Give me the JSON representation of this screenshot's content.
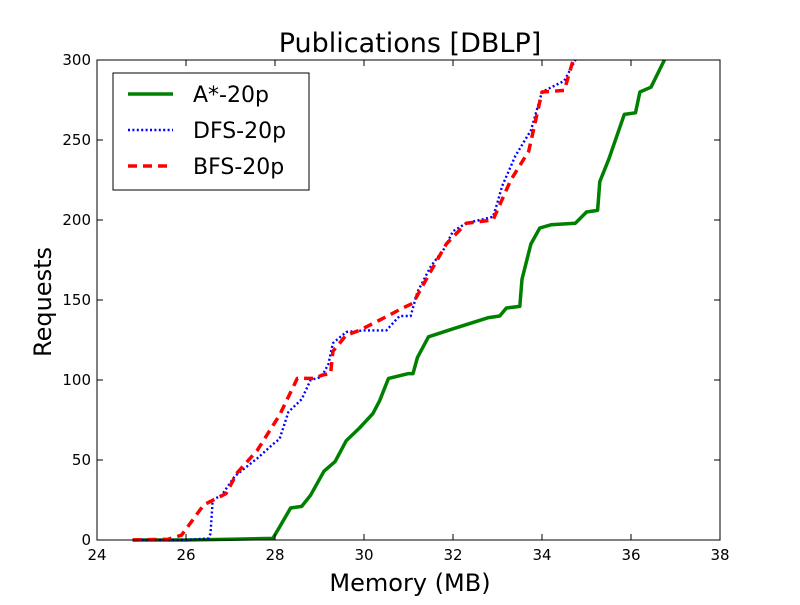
{
  "chart_data": {
    "type": "line",
    "title": "Publications [DBLP]",
    "xlabel": "Memory (MB)",
    "ylabel": "Requests",
    "xlim": [
      24,
      38
    ],
    "ylim": [
      0,
      300
    ],
    "xticks": [
      24,
      26,
      28,
      30,
      32,
      34,
      36,
      38
    ],
    "yticks": [
      0,
      50,
      100,
      150,
      200,
      250,
      300
    ],
    "grid": false,
    "legend_position": "top-left",
    "series": [
      {
        "name": "A*-20p",
        "color": "#008000",
        "style": "solid",
        "points": [
          [
            24.8,
            0
          ],
          [
            26.0,
            0
          ],
          [
            27.0,
            0.5
          ],
          [
            27.95,
            1
          ],
          [
            28.1,
            8
          ],
          [
            28.35,
            20
          ],
          [
            28.6,
            21
          ],
          [
            28.8,
            28
          ],
          [
            29.0,
            38
          ],
          [
            29.1,
            43
          ],
          [
            29.35,
            49
          ],
          [
            29.6,
            62
          ],
          [
            29.9,
            70
          ],
          [
            30.2,
            79
          ],
          [
            30.35,
            87
          ],
          [
            30.55,
            101
          ],
          [
            31.0,
            104
          ],
          [
            31.1,
            104
          ],
          [
            31.2,
            114
          ],
          [
            31.45,
            127
          ],
          [
            32.0,
            132
          ],
          [
            32.8,
            139
          ],
          [
            33.05,
            140
          ],
          [
            33.2,
            145
          ],
          [
            33.5,
            146
          ],
          [
            33.55,
            163
          ],
          [
            33.75,
            185
          ],
          [
            33.95,
            195
          ],
          [
            34.2,
            197
          ],
          [
            34.75,
            198
          ],
          [
            35.0,
            205
          ],
          [
            35.25,
            206
          ],
          [
            35.3,
            224
          ],
          [
            35.5,
            238
          ],
          [
            35.85,
            266
          ],
          [
            36.1,
            267
          ],
          [
            36.2,
            280
          ],
          [
            36.45,
            283
          ],
          [
            36.75,
            300
          ]
        ]
      },
      {
        "name": "DFS-20p",
        "color": "#0000ff",
        "style": "dotted",
        "points": [
          [
            24.8,
            0
          ],
          [
            26.0,
            0
          ],
          [
            26.5,
            1
          ],
          [
            26.55,
            4
          ],
          [
            26.6,
            25
          ],
          [
            26.8,
            28
          ],
          [
            27.1,
            40
          ],
          [
            27.6,
            51
          ],
          [
            28.0,
            61
          ],
          [
            28.1,
            63
          ],
          [
            28.3,
            80
          ],
          [
            28.6,
            88
          ],
          [
            28.8,
            100
          ],
          [
            29.05,
            102
          ],
          [
            29.2,
            110
          ],
          [
            29.3,
            123
          ],
          [
            29.6,
            130
          ],
          [
            30.0,
            131
          ],
          [
            30.5,
            131
          ],
          [
            30.8,
            140
          ],
          [
            31.05,
            140
          ],
          [
            31.2,
            155
          ],
          [
            31.5,
            171
          ],
          [
            31.8,
            182
          ],
          [
            32.0,
            193
          ],
          [
            32.3,
            198
          ],
          [
            32.9,
            202
          ],
          [
            33.0,
            211
          ],
          [
            33.1,
            221
          ],
          [
            33.4,
            240
          ],
          [
            33.75,
            256
          ],
          [
            34.0,
            280
          ],
          [
            34.5,
            287
          ],
          [
            34.75,
            300
          ]
        ]
      },
      {
        "name": "BFS-20p",
        "color": "#ff0000",
        "style": "dashed",
        "points": [
          [
            24.8,
            0
          ],
          [
            25.6,
            0.5
          ],
          [
            25.9,
            3
          ],
          [
            26.4,
            22
          ],
          [
            26.9,
            29
          ],
          [
            27.15,
            42
          ],
          [
            27.6,
            56
          ],
          [
            28.1,
            78
          ],
          [
            28.5,
            101
          ],
          [
            28.9,
            101
          ],
          [
            29.05,
            103
          ],
          [
            29.25,
            104
          ],
          [
            29.3,
            118
          ],
          [
            29.6,
            128
          ],
          [
            29.9,
            131
          ],
          [
            30.6,
            141
          ],
          [
            30.8,
            144
          ],
          [
            31.1,
            148
          ],
          [
            31.5,
            168
          ],
          [
            31.85,
            185
          ],
          [
            32.3,
            198
          ],
          [
            32.9,
            200
          ],
          [
            33.3,
            225
          ],
          [
            33.7,
            243
          ],
          [
            34.0,
            280
          ],
          [
            34.5,
            281
          ],
          [
            34.7,
            300
          ]
        ]
      }
    ]
  }
}
